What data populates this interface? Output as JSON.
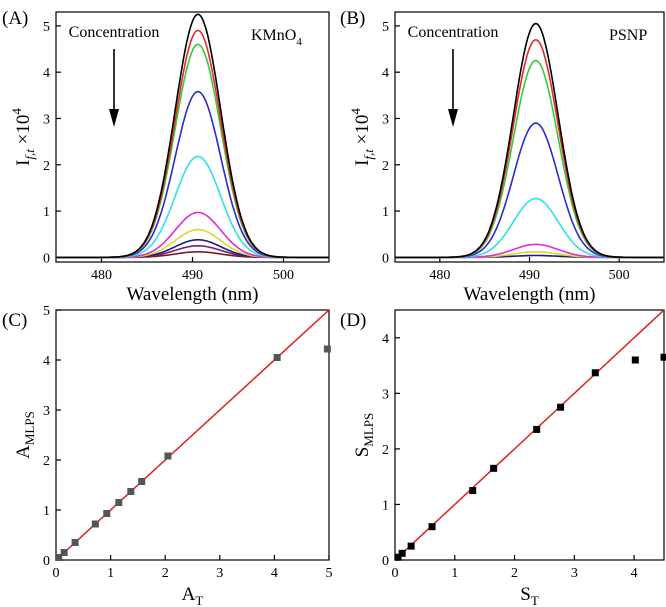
{
  "chart_data": [
    {
      "type": "line",
      "panel_label": "(A)",
      "title": "KMnO",
      "title_subscript": "4",
      "annotation": "Concentration",
      "xlabel": "Wavelength (nm)",
      "ylabel_main": "I",
      "ylabel_sub": "f,t",
      "ylabel_suffix": " ×10",
      "ylabel_exp": "4",
      "xlim": [
        475,
        505
      ],
      "ylim": [
        -0.1,
        5.3
      ],
      "xticks": [
        480,
        490,
        500
      ],
      "yticks": [
        0,
        1,
        2,
        3,
        4,
        5
      ],
      "center_nm": 490.6,
      "sigma_nm": 2.5,
      "series": [
        {
          "name": "c1",
          "color": "#000000",
          "peak": 5.25
        },
        {
          "name": "c2",
          "color": "#e32b2b",
          "peak": 4.9
        },
        {
          "name": "c3",
          "color": "#3cc83c",
          "peak": 4.6
        },
        {
          "name": "c4",
          "color": "#2a2ad1",
          "peak": 3.58
        },
        {
          "name": "c5",
          "color": "#2ee0e6",
          "peak": 2.18
        },
        {
          "name": "c6",
          "color": "#e22ad6",
          "peak": 0.97
        },
        {
          "name": "c7",
          "color": "#d9d92c",
          "peak": 0.6
        },
        {
          "name": "c8",
          "color": "#1a1a8a",
          "peak": 0.38
        },
        {
          "name": "c9",
          "color": "#7a1a7a",
          "peak": 0.25
        },
        {
          "name": "c10",
          "color": "#7a1a1a",
          "peak": 0.12
        }
      ]
    },
    {
      "type": "line",
      "panel_label": "(B)",
      "title": "PSNP",
      "annotation": "Concentration",
      "xlabel": "Wavelength (nm)",
      "ylabel_main": "I",
      "ylabel_sub": "f,t",
      "ylabel_suffix": " ×10",
      "ylabel_exp": "4",
      "xlim": [
        475,
        505
      ],
      "ylim": [
        -0.1,
        5.3
      ],
      "xticks": [
        480,
        490,
        500
      ],
      "yticks": [
        0,
        1,
        2,
        3,
        4,
        5
      ],
      "center_nm": 490.7,
      "sigma_nm": 2.5,
      "series": [
        {
          "name": "c1",
          "color": "#000000",
          "peak": 5.05
        },
        {
          "name": "c2",
          "color": "#e32b2b",
          "peak": 4.7
        },
        {
          "name": "c3",
          "color": "#3cc83c",
          "peak": 4.25
        },
        {
          "name": "c4",
          "color": "#2a2ad1",
          "peak": 2.9
        },
        {
          "name": "c5",
          "color": "#2ee0e6",
          "peak": 1.27
        },
        {
          "name": "c6",
          "color": "#e22ad6",
          "peak": 0.28
        },
        {
          "name": "c7",
          "color": "#d9d92c",
          "peak": 0.12
        },
        {
          "name": "c8",
          "color": "#1a1a8a",
          "peak": 0.04
        }
      ]
    },
    {
      "type": "scatter",
      "panel_label": "(C)",
      "xlabel_main": "A",
      "xlabel_sub": "T",
      "ylabel_main": "A",
      "ylabel_sub": "MLPS",
      "xlim": [
        0,
        5
      ],
      "ylim": [
        0,
        5
      ],
      "xticks": [
        0,
        1,
        2,
        3,
        4,
        5
      ],
      "yticks": [
        0,
        1,
        2,
        3,
        4,
        5
      ],
      "marker_color": "#555555",
      "line_color": "#e02020",
      "fit_line": [
        [
          0,
          0
        ],
        [
          5,
          5
        ]
      ],
      "points": [
        [
          0.05,
          0.05
        ],
        [
          0.15,
          0.15
        ],
        [
          0.35,
          0.35
        ],
        [
          0.72,
          0.72
        ],
        [
          0.93,
          0.93
        ],
        [
          1.15,
          1.15
        ],
        [
          1.37,
          1.37
        ],
        [
          1.57,
          1.57
        ],
        [
          2.05,
          2.08
        ],
        [
          4.05,
          4.05
        ],
        [
          4.97,
          4.22
        ]
      ]
    },
    {
      "type": "scatter",
      "panel_label": "(D)",
      "xlabel_main": "S",
      "xlabel_sub": "T",
      "ylabel_main": "S",
      "ylabel_sub": "MLPS",
      "xlim": [
        0,
        4.5
      ],
      "ylim": [
        0,
        4.5
      ],
      "xticks": [
        0,
        1,
        2,
        3,
        4
      ],
      "yticks": [
        0,
        1,
        2,
        3,
        4
      ],
      "marker_color": "#000000",
      "line_color": "#e02020",
      "fit_line": [
        [
          0,
          0
        ],
        [
          4.5,
          4.5
        ]
      ],
      "points": [
        [
          0.05,
          0.05
        ],
        [
          0.12,
          0.12
        ],
        [
          0.27,
          0.25
        ],
        [
          0.62,
          0.6
        ],
        [
          1.3,
          1.25
        ],
        [
          1.65,
          1.65
        ],
        [
          2.37,
          2.35
        ],
        [
          2.77,
          2.75
        ],
        [
          3.35,
          3.37
        ],
        [
          4.02,
          3.6
        ],
        [
          4.5,
          3.65
        ]
      ]
    }
  ]
}
